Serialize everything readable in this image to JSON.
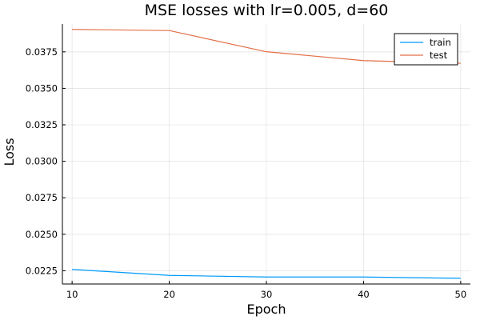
{
  "chart_data": {
    "type": "line",
    "title": "MSE losses with lr=0.005, d=60",
    "xlabel": "Epoch",
    "ylabel": "Loss",
    "x": [
      10,
      20,
      30,
      40,
      50
    ],
    "xlim": [
      9,
      51
    ],
    "ylim": [
      0.02159,
      0.03941
    ],
    "xticks": [
      10,
      20,
      30,
      40,
      50
    ],
    "xtick_labels": [
      "10",
      "20",
      "30",
      "40",
      "50"
    ],
    "yticks": [
      0.0225,
      0.025,
      0.0275,
      0.03,
      0.0325,
      0.035,
      0.0375
    ],
    "ytick_labels": [
      "0.0225",
      "0.0250",
      "0.0275",
      "0.0300",
      "0.0325",
      "0.0350",
      "0.0375"
    ],
    "grid": true,
    "legend_position": "top-right",
    "series": [
      {
        "name": "train",
        "color": "#009AFA",
        "values": [
          0.02259,
          0.02218,
          0.02207,
          0.02207,
          0.02198
        ]
      },
      {
        "name": "test",
        "color": "#E36F47",
        "values": [
          0.03904,
          0.03896,
          0.03751,
          0.0369,
          0.03672
        ]
      }
    ]
  }
}
